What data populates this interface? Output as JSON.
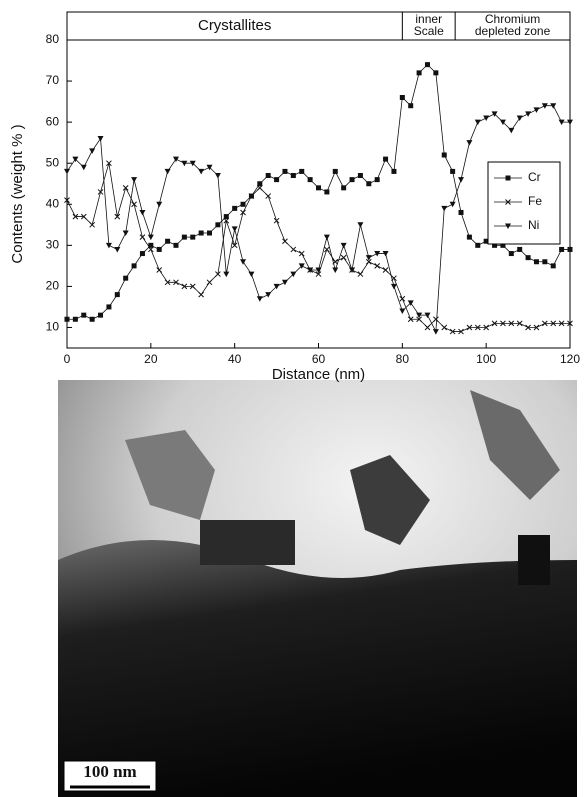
{
  "chart_data": {
    "type": "line",
    "x_label": "Distance (nm)",
    "y_label": "Contents (weight % )",
    "regions": [
      {
        "lines": [
          "Crystallites"
        ],
        "from": 0,
        "to": 80
      },
      {
        "lines": [
          "inner",
          "Scale"
        ],
        "from": 80,
        "to": 92.6
      },
      {
        "lines": [
          "Chromium",
          "depleted zone"
        ],
        "from": 92.6,
        "to": 120
      }
    ],
    "x": [
      0,
      2,
      4,
      6,
      8,
      10,
      12,
      14,
      16,
      18,
      20,
      22,
      24,
      26,
      28,
      30,
      32,
      34,
      36,
      38,
      40,
      42,
      44,
      46,
      48,
      50,
      52,
      54,
      56,
      58,
      60,
      62,
      64,
      66,
      68,
      70,
      72,
      74,
      76,
      78,
      80,
      82,
      84,
      86,
      88,
      90,
      92,
      94,
      96,
      98,
      100,
      102,
      104,
      106,
      108,
      110,
      112,
      114,
      116,
      118,
      120
    ],
    "series": [
      {
        "name": "Cr",
        "color": "#111111",
        "marker": "square",
        "values": [
          12,
          12,
          13,
          12,
          13,
          15,
          18,
          22,
          25,
          28,
          30,
          29,
          31,
          30,
          32,
          32,
          33,
          33,
          35,
          37,
          39,
          40,
          42,
          45,
          47,
          46,
          48,
          47,
          48,
          46,
          44,
          43,
          48,
          44,
          46,
          47,
          45,
          46,
          51,
          48,
          66,
          64,
          72,
          74,
          72,
          52,
          48,
          38,
          32,
          30,
          31,
          30,
          30,
          28,
          29,
          27,
          26,
          26,
          25,
          29,
          29
        ]
      },
      {
        "name": "Fe",
        "color": "#111111",
        "marker": "x",
        "values": [
          41,
          37,
          37,
          35,
          43,
          50,
          37,
          44,
          40,
          32,
          29,
          24,
          21,
          21,
          20,
          20,
          18,
          21,
          23,
          36,
          30,
          38,
          42,
          44,
          42,
          36,
          31,
          29,
          28,
          24,
          23,
          29,
          26,
          27,
          24,
          23,
          26,
          25,
          24,
          22,
          17,
          12,
          12,
          10,
          12,
          10,
          9,
          9,
          10,
          10,
          10,
          11,
          11,
          11,
          11,
          10,
          10,
          11,
          11,
          11,
          11
        ]
      },
      {
        "name": "Ni",
        "color": "#111111",
        "marker": "triangle",
        "values": [
          48,
          51,
          49,
          53,
          56,
          30,
          29,
          33,
          46,
          38,
          32,
          40,
          48,
          51,
          50,
          50,
          48,
          49,
          47,
          23,
          34,
          26,
          23,
          17,
          18,
          20,
          21,
          23,
          25,
          24,
          24,
          32,
          24,
          30,
          24,
          35,
          27,
          28,
          28,
          20,
          14,
          16,
          13,
          13,
          9,
          39,
          40,
          46,
          55,
          60,
          61,
          62,
          60,
          58,
          61,
          62,
          63,
          64,
          64,
          60,
          60
        ]
      }
    ],
    "xlim": [
      0,
      120
    ],
    "ylim": [
      5,
      80
    ],
    "xticks": [
      0,
      20,
      40,
      60,
      80,
      100,
      120
    ],
    "yticks": [
      10,
      20,
      30,
      40,
      50,
      60,
      70,
      80
    ],
    "legend": "right",
    "grid": false
  },
  "micrograph": {
    "scale_bar": "100 nm"
  }
}
